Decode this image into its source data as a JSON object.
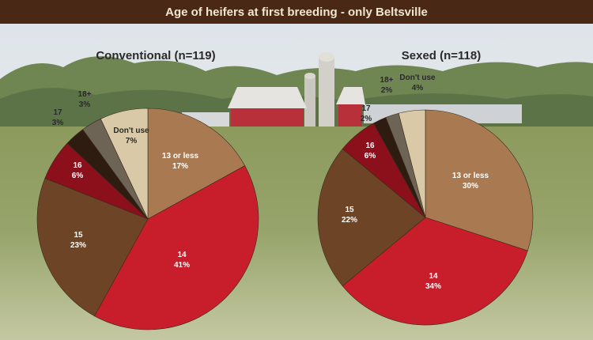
{
  "title": "Age of heifers at first breeding - only Beltsville",
  "chart_data": [
    {
      "type": "pie",
      "title": "Conventional (n=119)",
      "slices": [
        {
          "label": "13 or less",
          "value": 17,
          "value_label": "17%",
          "color": "#a97a52",
          "text_color": "#ffffff"
        },
        {
          "label": "14",
          "value": 41,
          "value_label": "41%",
          "color": "#c81e2b",
          "text_color": "#ffffff"
        },
        {
          "label": "15",
          "value": 23,
          "value_label": "23%",
          "color": "#6e4426",
          "text_color": "#ffffff"
        },
        {
          "label": "16",
          "value": 6,
          "value_label": "6%",
          "color": "#8c0f1c",
          "text_color": "#ffffff"
        },
        {
          "label": "17",
          "value": 3,
          "value_label": "3%",
          "color": "#2e1c10",
          "text_color": "#2a2a2a"
        },
        {
          "label": "18+",
          "value": 3,
          "value_label": "3%",
          "color": "#6d6455",
          "text_color": "#2a2a2a"
        },
        {
          "label": "Don't use",
          "value": 7,
          "value_label": "7%",
          "color": "#d9c9a6",
          "text_color": "#2a2a2a"
        }
      ]
    },
    {
      "type": "pie",
      "title": "Sexed (n=118)",
      "slices": [
        {
          "label": "13 or less",
          "value": 30,
          "value_label": "30%",
          "color": "#a97a52",
          "text_color": "#ffffff"
        },
        {
          "label": "14",
          "value": 34,
          "value_label": "34%",
          "color": "#c81e2b",
          "text_color": "#ffffff"
        },
        {
          "label": "15",
          "value": 22,
          "value_label": "22%",
          "color": "#6e4426",
          "text_color": "#ffffff"
        },
        {
          "label": "16",
          "value": 6,
          "value_label": "6%",
          "color": "#8c0f1c",
          "text_color": "#ffffff"
        },
        {
          "label": "17",
          "value": 2,
          "value_label": "2%",
          "color": "#2e1c10",
          "text_color": "#2a2a2a"
        },
        {
          "label": "18+",
          "value": 2,
          "value_label": "2%",
          "color": "#6d6455",
          "text_color": "#2a2a2a"
        },
        {
          "label": "Don't use",
          "value": 4,
          "value_label": "4%",
          "color": "#d9c9a6",
          "text_color": "#2a2a2a"
        }
      ]
    }
  ]
}
